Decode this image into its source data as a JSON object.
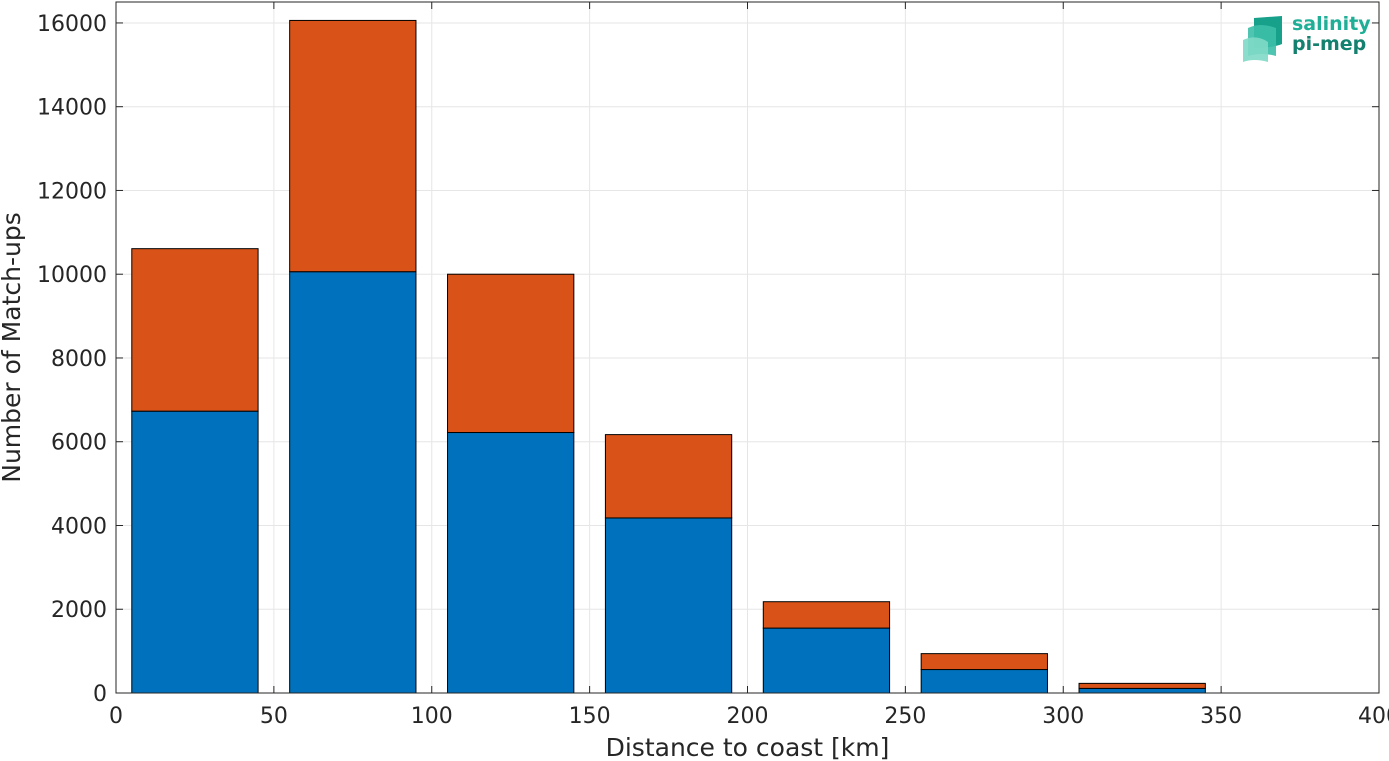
{
  "chart_data": {
    "type": "bar",
    "stacked": true,
    "title": "",
    "xlabel": "Distance to coast [km]",
    "ylabel": "Number of Match-ups",
    "x": [
      25,
      75,
      125,
      175,
      225,
      275,
      325,
      375
    ],
    "bin_edges": [
      [
        5,
        45
      ],
      [
        55,
        95
      ],
      [
        105,
        145
      ],
      [
        155,
        195
      ],
      [
        205,
        245
      ],
      [
        255,
        295
      ],
      [
        305,
        345
      ],
      [
        355,
        395
      ]
    ],
    "series": [
      {
        "color": "#0072bd",
        "values": [
          6730,
          10060,
          6220,
          4180,
          1550,
          560,
          110,
          0
        ]
      },
      {
        "color": "#d95319",
        "values": [
          3880,
          6000,
          3780,
          1990,
          630,
          380,
          120,
          0
        ]
      }
    ],
    "xlim": [
      0,
      400
    ],
    "ylim": [
      0,
      16500
    ],
    "xticks": [
      "0",
      "50",
      "100",
      "150",
      "200",
      "250",
      "300",
      "350",
      "400"
    ],
    "yticks": [
      "0",
      "2000",
      "4000",
      "6000",
      "8000",
      "10000",
      "12000",
      "14000",
      "16000"
    ],
    "grid": true
  },
  "logo": {
    "line1": "salinity",
    "line2": "pi-mep",
    "icon": "salinity-wave-logo-icon",
    "color": "#1fae96"
  }
}
